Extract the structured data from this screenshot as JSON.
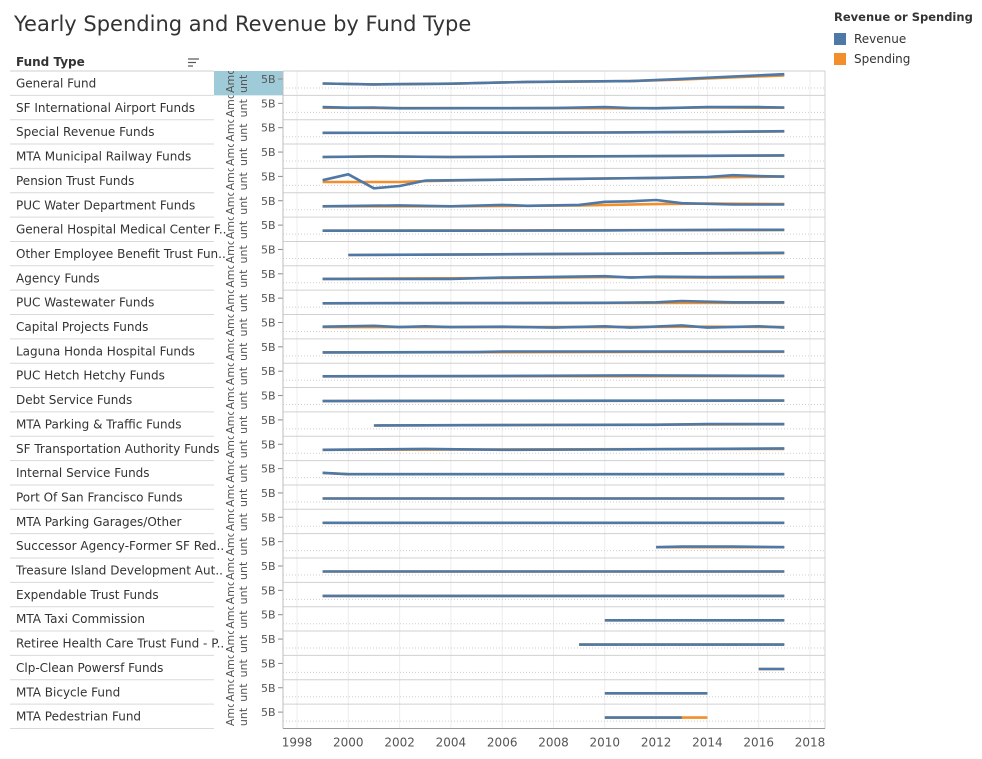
{
  "title": "Yearly Spending and Revenue by Fund Type",
  "legend": {
    "title": "Revenue or Spending",
    "items": [
      {
        "label": "Revenue",
        "color": "#4e79a7"
      },
      {
        "label": "Spending",
        "color": "#f28e2b"
      }
    ]
  },
  "chart_data": {
    "type": "line",
    "row_header": "Fund Type",
    "axis_label_fragment": "Amount",
    "y_tick_label": "5B",
    "xlim": [
      1998,
      2018
    ],
    "x_ticks": [
      1998,
      2000,
      2002,
      2004,
      2006,
      2008,
      2010,
      2012,
      2014,
      2016,
      2018
    ],
    "colors": {
      "Revenue": "#4e79a7",
      "Spending": "#f28e2b"
    },
    "rows": [
      {
        "name": "General Fund",
        "revenue": [
          [
            1999,
            0.17
          ],
          [
            2001,
            0.07
          ],
          [
            2004,
            0.14
          ],
          [
            2007,
            0.34
          ],
          [
            2011,
            0.43
          ],
          [
            2013,
            0.68
          ],
          [
            2015,
            0.95
          ],
          [
            2017,
            1.2
          ]
        ],
        "spending": [
          [
            1999,
            0.17
          ],
          [
            2001,
            0.07
          ],
          [
            2004,
            0.14
          ],
          [
            2007,
            0.34
          ],
          [
            2011,
            0.43
          ],
          [
            2013,
            0.6
          ],
          [
            2015,
            0.85
          ],
          [
            2017,
            1.05
          ]
        ]
      },
      {
        "name": "SF International Airport Funds",
        "revenue": [
          [
            1999,
            0.25
          ],
          [
            2000,
            0.18
          ],
          [
            2001,
            0.2
          ],
          [
            2002,
            0.12
          ],
          [
            2005,
            0.13
          ],
          [
            2008,
            0.14
          ],
          [
            2010,
            0.25
          ],
          [
            2011,
            0.15
          ],
          [
            2012,
            0.12
          ],
          [
            2014,
            0.25
          ],
          [
            2016,
            0.25
          ],
          [
            2017,
            0.2
          ]
        ],
        "spending": [
          [
            1999,
            0.18
          ],
          [
            2001,
            0.15
          ],
          [
            2005,
            0.13
          ],
          [
            2008,
            0.14
          ],
          [
            2011,
            0.12
          ],
          [
            2014,
            0.2
          ],
          [
            2017,
            0.18
          ]
        ]
      },
      {
        "name": "Special Revenue Funds",
        "revenue": [
          [
            1999,
            0.1
          ],
          [
            2005,
            0.11
          ],
          [
            2010,
            0.13
          ],
          [
            2014,
            0.2
          ],
          [
            2017,
            0.28
          ]
        ],
        "spending": [
          [
            1999,
            0.1
          ],
          [
            2005,
            0.11
          ],
          [
            2010,
            0.13
          ],
          [
            2014,
            0.2
          ],
          [
            2017,
            0.26
          ]
        ]
      },
      {
        "name": "MTA Municipal Railway Funds",
        "revenue": [
          [
            1999,
            0.12
          ],
          [
            2001,
            0.18
          ],
          [
            2004,
            0.12
          ],
          [
            2008,
            0.18
          ],
          [
            2012,
            0.22
          ],
          [
            2017,
            0.3
          ]
        ],
        "spending": [
          [
            1999,
            0.12
          ],
          [
            2001,
            0.18
          ],
          [
            2004,
            0.12
          ],
          [
            2008,
            0.18
          ],
          [
            2012,
            0.22
          ],
          [
            2017,
            0.3
          ]
        ]
      },
      {
        "name": "Pension Trust Funds",
        "revenue": [
          [
            1999,
            0.25
          ],
          [
            2000,
            0.9
          ],
          [
            2001,
            -0.65
          ],
          [
            2002,
            -0.4
          ],
          [
            2003,
            0.2
          ],
          [
            2006,
            0.3
          ],
          [
            2009,
            0.4
          ],
          [
            2012,
            0.5
          ],
          [
            2014,
            0.6
          ],
          [
            2015,
            0.8
          ],
          [
            2016,
            0.7
          ],
          [
            2017,
            0.65
          ]
        ],
        "spending": [
          [
            1999,
            0.05
          ],
          [
            2002,
            0.05
          ],
          [
            2003,
            0.15
          ],
          [
            2006,
            0.3
          ],
          [
            2009,
            0.4
          ],
          [
            2012,
            0.5
          ],
          [
            2017,
            0.65
          ]
        ]
      },
      {
        "name": "PUC Water Department Funds",
        "revenue": [
          [
            1999,
            0.05
          ],
          [
            2002,
            0.15
          ],
          [
            2004,
            0.05
          ],
          [
            2006,
            0.2
          ],
          [
            2007,
            0.1
          ],
          [
            2009,
            0.2
          ],
          [
            2010,
            0.55
          ],
          [
            2011,
            0.6
          ],
          [
            2012,
            0.75
          ],
          [
            2013,
            0.4
          ],
          [
            2015,
            0.25
          ],
          [
            2017,
            0.25
          ]
        ],
        "spending": [
          [
            1999,
            0.05
          ],
          [
            2004,
            0.05
          ],
          [
            2009,
            0.15
          ],
          [
            2012,
            0.3
          ],
          [
            2014,
            0.35
          ],
          [
            2017,
            0.3
          ]
        ]
      },
      {
        "name": "General Hospital Medical Center F..",
        "revenue": [
          [
            1999,
            0.05
          ],
          [
            2005,
            0.05
          ],
          [
            2010,
            0.08
          ],
          [
            2015,
            0.15
          ],
          [
            2017,
            0.15
          ]
        ],
        "spending": [
          [
            1999,
            0.05
          ],
          [
            2017,
            0.12
          ]
        ]
      },
      {
        "name": "Other Employee Benefit Trust Fun..",
        "revenue": [
          [
            2000,
            0.05
          ],
          [
            2005,
            0.12
          ],
          [
            2010,
            0.2
          ],
          [
            2017,
            0.3
          ]
        ],
        "spending": [
          [
            2000,
            0.05
          ],
          [
            2017,
            0.25
          ]
        ]
      },
      {
        "name": "Agency Funds",
        "revenue": [
          [
            1999,
            0.1
          ],
          [
            2004,
            0.1
          ],
          [
            2006,
            0.25
          ],
          [
            2010,
            0.4
          ],
          [
            2011,
            0.25
          ],
          [
            2012,
            0.35
          ],
          [
            2014,
            0.3
          ],
          [
            2017,
            0.35
          ]
        ],
        "spending": [
          [
            1999,
            0.1
          ],
          [
            2006,
            0.2
          ],
          [
            2010,
            0.3
          ],
          [
            2014,
            0.25
          ],
          [
            2017,
            0.25
          ]
        ]
      },
      {
        "name": "PUC Wastewater Funds",
        "revenue": [
          [
            1999,
            0.1
          ],
          [
            2005,
            0.12
          ],
          [
            2010,
            0.15
          ],
          [
            2012,
            0.2
          ],
          [
            2013,
            0.35
          ],
          [
            2015,
            0.2
          ],
          [
            2017,
            0.2
          ]
        ],
        "spending": [
          [
            1999,
            0.1
          ],
          [
            2017,
            0.15
          ]
        ]
      },
      {
        "name": "Capital Projects Funds",
        "revenue": [
          [
            1999,
            0.2
          ],
          [
            2001,
            0.3
          ],
          [
            2002,
            0.15
          ],
          [
            2003,
            0.25
          ],
          [
            2004,
            0.15
          ],
          [
            2006,
            0.2
          ],
          [
            2008,
            0.1
          ],
          [
            2010,
            0.25
          ],
          [
            2011,
            0.1
          ],
          [
            2013,
            0.35
          ],
          [
            2014,
            0.1
          ],
          [
            2016,
            0.25
          ],
          [
            2017,
            0.1
          ]
        ],
        "spending": [
          [
            1999,
            0.15
          ],
          [
            2005,
            0.15
          ],
          [
            2010,
            0.15
          ],
          [
            2014,
            0.2
          ],
          [
            2017,
            0.15
          ]
        ]
      },
      {
        "name": "Laguna Honda Hospital Funds",
        "revenue": [
          [
            1999,
            0.05
          ],
          [
            2005,
            0.08
          ],
          [
            2006,
            0.15
          ],
          [
            2010,
            0.15
          ],
          [
            2017,
            0.15
          ]
        ],
        "spending": [
          [
            1999,
            0.05
          ],
          [
            2017,
            0.12
          ]
        ]
      },
      {
        "name": "PUC Hetch Hetchy Funds",
        "revenue": [
          [
            1999,
            0.1
          ],
          [
            2005,
            0.12
          ],
          [
            2011,
            0.2
          ],
          [
            2017,
            0.15
          ]
        ],
        "spending": [
          [
            1999,
            0.1
          ],
          [
            2017,
            0.12
          ]
        ]
      },
      {
        "name": "Debt Service Funds",
        "revenue": [
          [
            1999,
            0.05
          ],
          [
            2005,
            0.08
          ],
          [
            2010,
            0.1
          ],
          [
            2017,
            0.12
          ]
        ],
        "spending": [
          [
            1999,
            0.05
          ],
          [
            2017,
            0.1
          ]
        ]
      },
      {
        "name": "MTA Parking & Traffic Funds",
        "revenue": [
          [
            2001,
            0.05
          ],
          [
            2007,
            0.1
          ],
          [
            2012,
            0.12
          ],
          [
            2014,
            0.2
          ],
          [
            2017,
            0.2
          ]
        ],
        "spending": [
          [
            2001,
            0.05
          ],
          [
            2017,
            0.18
          ]
        ]
      },
      {
        "name": "SF Transportation Authority Funds",
        "revenue": [
          [
            1999,
            0.05
          ],
          [
            2003,
            0.15
          ],
          [
            2006,
            0.05
          ],
          [
            2010,
            0.08
          ],
          [
            2014,
            0.15
          ],
          [
            2017,
            0.2
          ]
        ],
        "spending": [
          [
            1999,
            0.05
          ],
          [
            2017,
            0.15
          ]
        ]
      },
      {
        "name": "Internal Service Funds",
        "revenue": [
          [
            1999,
            0.2
          ],
          [
            2000,
            0.05
          ],
          [
            2017,
            0.05
          ]
        ],
        "spending": [
          [
            1999,
            0.18
          ],
          [
            2000,
            0.05
          ],
          [
            2017,
            0.05
          ]
        ]
      },
      {
        "name": "Port Of San Francisco Funds",
        "revenue": [
          [
            1999,
            0.05
          ],
          [
            2017,
            0.05
          ]
        ],
        "spending": [
          [
            1999,
            0.05
          ],
          [
            2017,
            0.05
          ]
        ]
      },
      {
        "name": "MTA Parking Garages/Other",
        "revenue": [
          [
            1999,
            0.05
          ],
          [
            2017,
            0.05
          ]
        ],
        "spending": [
          [
            1999,
            0.05
          ],
          [
            2017,
            0.05
          ]
        ]
      },
      {
        "name": "Successor Agency-Former SF Red..",
        "revenue": [
          [
            2012,
            0.05
          ],
          [
            2013,
            0.12
          ],
          [
            2015,
            0.12
          ],
          [
            2017,
            0.05
          ]
        ],
        "spending": [
          [
            2012,
            0.05
          ],
          [
            2017,
            0.05
          ]
        ]
      },
      {
        "name": "Treasure Island Development Aut..",
        "revenue": [
          [
            1999,
            0.05
          ],
          [
            2017,
            0.05
          ]
        ],
        "spending": [
          [
            1999,
            0.05
          ],
          [
            2017,
            0.05
          ]
        ]
      },
      {
        "name": "Expendable Trust Funds",
        "revenue": [
          [
            1999,
            0.05
          ],
          [
            2017,
            0.05
          ]
        ],
        "spending": [
          [
            1999,
            0.05
          ],
          [
            2017,
            0.05
          ]
        ]
      },
      {
        "name": "MTA Taxi Commission",
        "revenue": [
          [
            2010,
            0.05
          ],
          [
            2017,
            0.05
          ]
        ],
        "spending": [
          [
            2010,
            0.05
          ],
          [
            2017,
            0.05
          ]
        ]
      },
      {
        "name": "Retiree Health Care Trust Fund - P..",
        "revenue": [
          [
            2009,
            0.05
          ],
          [
            2017,
            0.05
          ]
        ],
        "spending": [
          [
            2009,
            0.05
          ],
          [
            2017,
            0.05
          ]
        ]
      },
      {
        "name": "Clp-Clean Powersf Funds",
        "revenue": [
          [
            2016,
            0.05
          ],
          [
            2017,
            0.05
          ]
        ],
        "spending": [
          [
            2016,
            0.05
          ],
          [
            2017,
            0.05
          ]
        ]
      },
      {
        "name": "MTA Bicycle Fund",
        "revenue": [
          [
            2010,
            0.05
          ],
          [
            2014,
            0.05
          ]
        ],
        "spending": [
          [
            2010,
            0.05
          ],
          [
            2014,
            0.05
          ]
        ]
      },
      {
        "name": "MTA Pedestrian Fund",
        "revenue": [
          [
            2010,
            0.05
          ],
          [
            2013,
            0.05
          ]
        ],
        "spending": [
          [
            2010,
            0.05
          ],
          [
            2014,
            0.05
          ]
        ]
      }
    ]
  }
}
